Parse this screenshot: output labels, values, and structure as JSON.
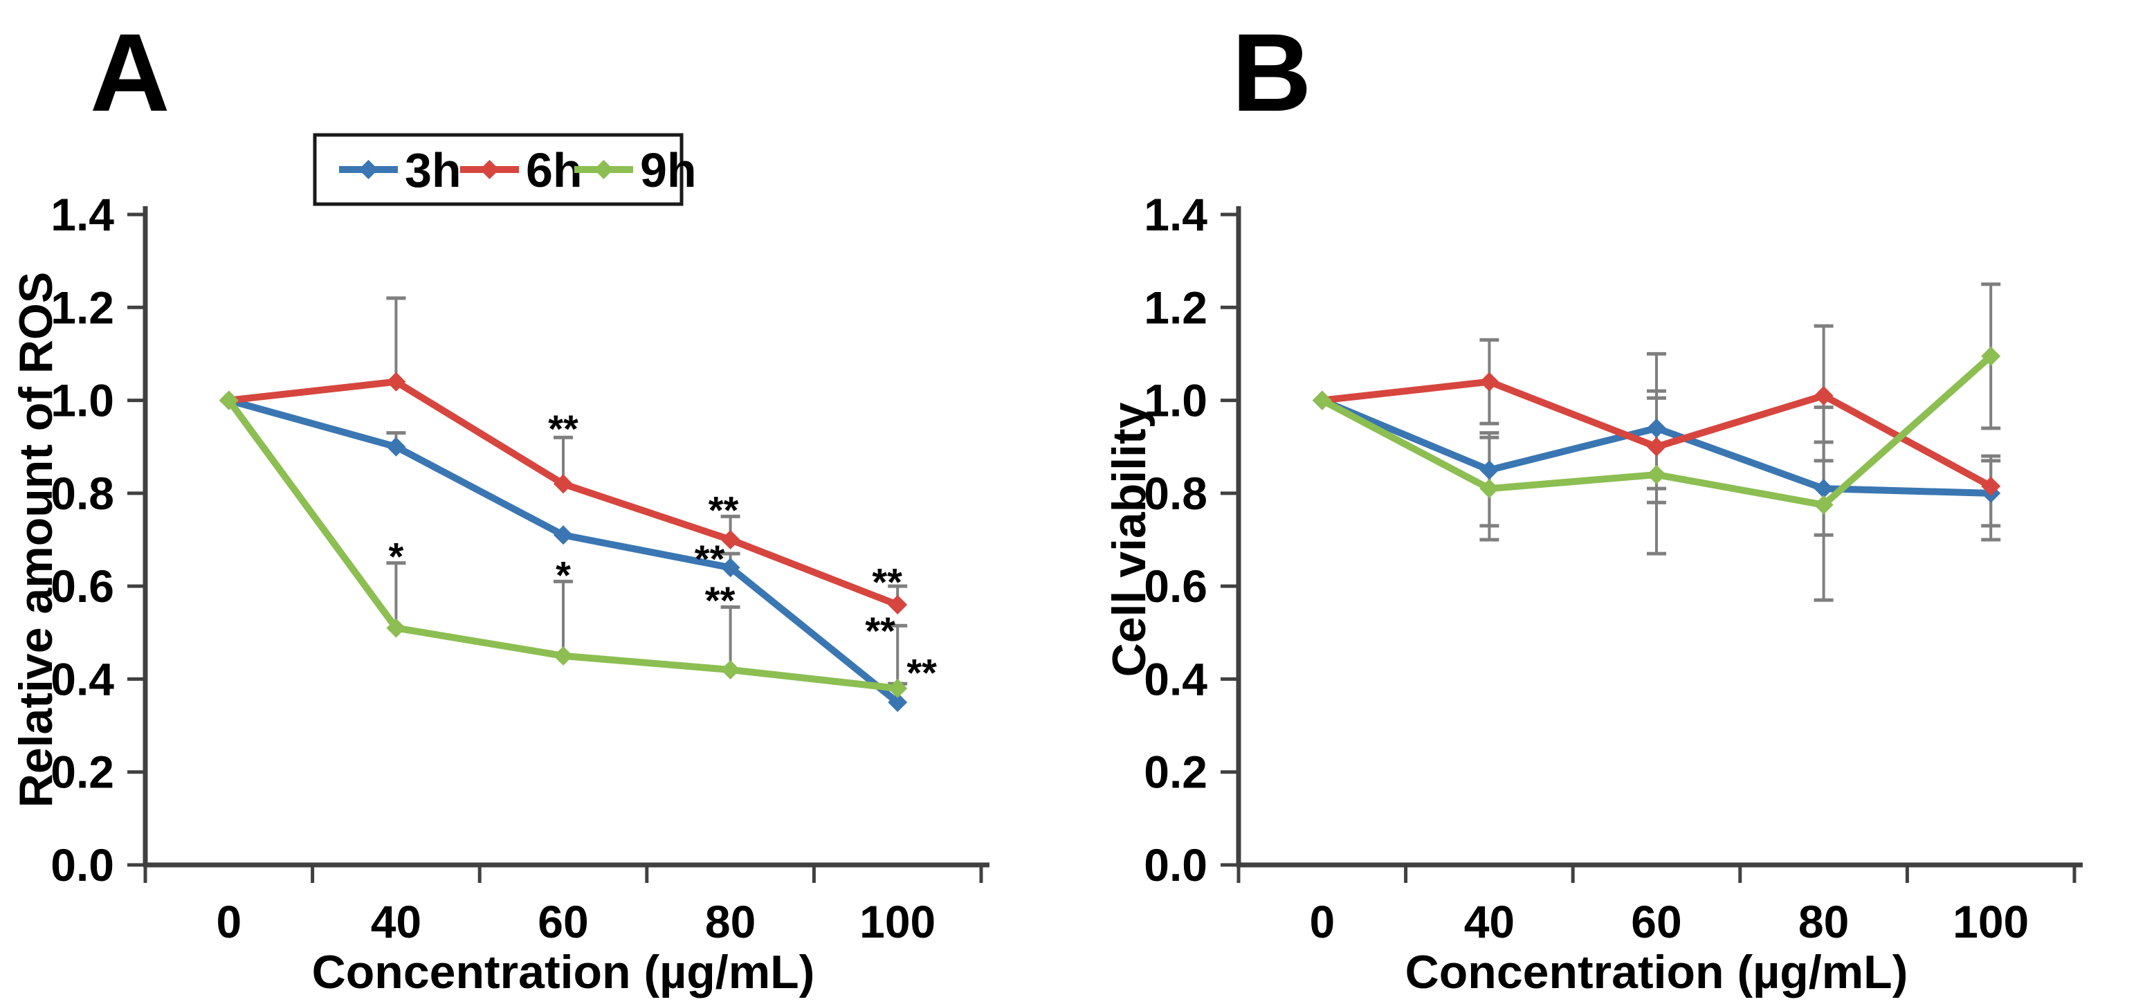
{
  "figure": {
    "panels": [
      {
        "label": "A"
      },
      {
        "label": "B"
      }
    ]
  },
  "colors": {
    "series_3h": "#3a76b2",
    "series_6h": "#d6463f",
    "series_9h": "#8cbe52",
    "error_bar": "#7f7f7f",
    "axis": "#404040",
    "text": "#000000",
    "legend_border": "#1a1a1a",
    "background": "#ffffff"
  },
  "chart_data": [
    {
      "type": "line",
      "panel": "A",
      "title": "",
      "categories": [
        "0",
        "40",
        "60",
        "80",
        "100"
      ],
      "xlabel": "Concentration (µg/mL)",
      "ylabel": "Relative amount of ROS",
      "ylim": [
        0.0,
        1.4
      ],
      "ytick_step": 0.2,
      "ytick_labels": [
        "0.0",
        "0.2",
        "0.4",
        "0.6",
        "0.8",
        "1.0",
        "1.2",
        "1.4"
      ],
      "grid": false,
      "legend": {
        "position": "top",
        "entries": [
          "3h",
          "6h",
          "9h"
        ]
      },
      "series": [
        {
          "name": "3h",
          "color_key": "series_3h",
          "values": [
            1.0,
            0.9,
            0.71,
            0.64,
            0.35
          ],
          "err_up": [
            0,
            0.03,
            0,
            0.03,
            0.04
          ],
          "err_down": [
            0,
            0,
            0,
            0,
            0
          ]
        },
        {
          "name": "6h",
          "color_key": "series_6h",
          "values": [
            1.0,
            1.04,
            0.82,
            0.7,
            0.56
          ],
          "err_up": [
            0,
            0.18,
            0.1,
            0.05,
            0.04
          ],
          "err_down": [
            0,
            0,
            0,
            0,
            0
          ]
        },
        {
          "name": "9h",
          "color_key": "series_9h",
          "values": [
            1.0,
            0.51,
            0.45,
            0.42,
            0.38
          ],
          "err_up": [
            0,
            0.14,
            0.16,
            0.135,
            0.135
          ],
          "err_down": [
            0,
            0,
            0,
            0,
            0
          ]
        }
      ],
      "annotations": [
        {
          "x_index": 1,
          "y": 0.68,
          "dx": 0,
          "text": "*"
        },
        {
          "x_index": 2,
          "y": 0.955,
          "dx": 0,
          "text": "**"
        },
        {
          "x_index": 2,
          "y": 0.64,
          "dx": 0,
          "text": "*"
        },
        {
          "x_index": 3,
          "y": 0.78,
          "dx": -10,
          "text": "**"
        },
        {
          "x_index": 3,
          "y": 0.675,
          "dx": -30,
          "text": "**"
        },
        {
          "x_index": 3,
          "y": 0.585,
          "dx": -15,
          "text": "**"
        },
        {
          "x_index": 4,
          "y": 0.625,
          "dx": -15,
          "text": "**"
        },
        {
          "x_index": 4,
          "y": 0.52,
          "dx": -25,
          "text": "**"
        },
        {
          "x_index": 4,
          "y": 0.43,
          "dx": 35,
          "text": "**"
        }
      ]
    },
    {
      "type": "line",
      "panel": "B",
      "title": "",
      "categories": [
        "0",
        "40",
        "60",
        "80",
        "100"
      ],
      "xlabel": "Concentration (µg/mL)",
      "ylabel": "Cell viability",
      "ylim": [
        0.0,
        1.4
      ],
      "ytick_step": 0.2,
      "ytick_labels": [
        "0.0",
        "0.2",
        "0.4",
        "0.6",
        "0.8",
        "1.0",
        "1.2",
        "1.4"
      ],
      "grid": false,
      "legend": null,
      "series": [
        {
          "name": "3h",
          "color_key": "series_3h",
          "values": [
            1.0,
            0.85,
            0.94,
            0.81,
            0.8
          ],
          "err_up": [
            0,
            0.08,
            0.16,
            0.1,
            0.07
          ],
          "err_down": [
            0,
            0.12,
            0.16,
            0.1,
            0.1
          ]
        },
        {
          "name": "6h",
          "color_key": "series_6h",
          "values": [
            1.0,
            1.04,
            0.9,
            1.01,
            0.815
          ],
          "err_up": [
            0,
            0.09,
            0.12,
            0.15,
            0.065
          ],
          "err_down": [
            0,
            0.09,
            0.09,
            0.14,
            0.085
          ]
        },
        {
          "name": "9h",
          "color_key": "series_9h",
          "values": [
            1.0,
            0.81,
            0.84,
            0.775,
            1.095
          ],
          "err_up": [
            0,
            0.11,
            0.165,
            0.21,
            0.155
          ],
          "err_down": [
            0,
            0.11,
            0.17,
            0.205,
            0.155
          ]
        }
      ],
      "annotations": []
    }
  ]
}
